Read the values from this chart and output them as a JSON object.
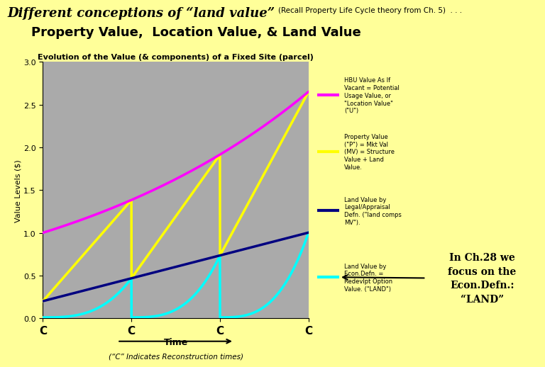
{
  "bg_color": "#FFFF99",
  "title_main": "Different conceptions of “land value”",
  "title_sub": "(Recall Property Life Cycle theory from Ch. 5)  . . .",
  "banner_text": "Property Value,  Location Value, & Land Value",
  "banner_bg": "#FF9999",
  "chart_title": "Evolution of the Value (& components) of a Fixed Site (parcel)",
  "chart_bg": "#AAAAAA",
  "ylabel": "Value Levels ($)",
  "xlabel_arrow": "Time",
  "xlabel_note": "(“C” Indicates Reconstruction times)",
  "ylim": [
    0.0,
    3.0
  ],
  "yticks": [
    0.0,
    0.5,
    1.0,
    1.5,
    2.0,
    2.5,
    3.0
  ],
  "reconstruction_times": [
    0,
    25,
    50,
    75
  ],
  "legend_bg": "#BBBBBB",
  "legend_items": [
    {
      "color": "#FF00FF",
      "label": "HBU Value As If\nVacant = Potential\nUsage Value, or\n\"Location Value\"\n(\"U\")"
    },
    {
      "color": "#FFFF00",
      "label": "Property Value\n(\"P\") = Mkt Val\n(MV) = Structure\nValue + Land\nValue."
    },
    {
      "color": "#000080",
      "label": "Land Value by\nLegal/Appraisal\nDefn. (\"land comps\nMV\")."
    },
    {
      "color": "#00FFFF",
      "label": "Land Value by\nEcon.Defn. =\nRedevlpt Option\nValue. (\"LAND\")"
    }
  ],
  "callout_text": "In Ch.28 we\nfocus on the\nEcon.Defn.:\n“LAND”",
  "callout_border": "#00CCCC",
  "n_segments": 4,
  "t_max": 75
}
